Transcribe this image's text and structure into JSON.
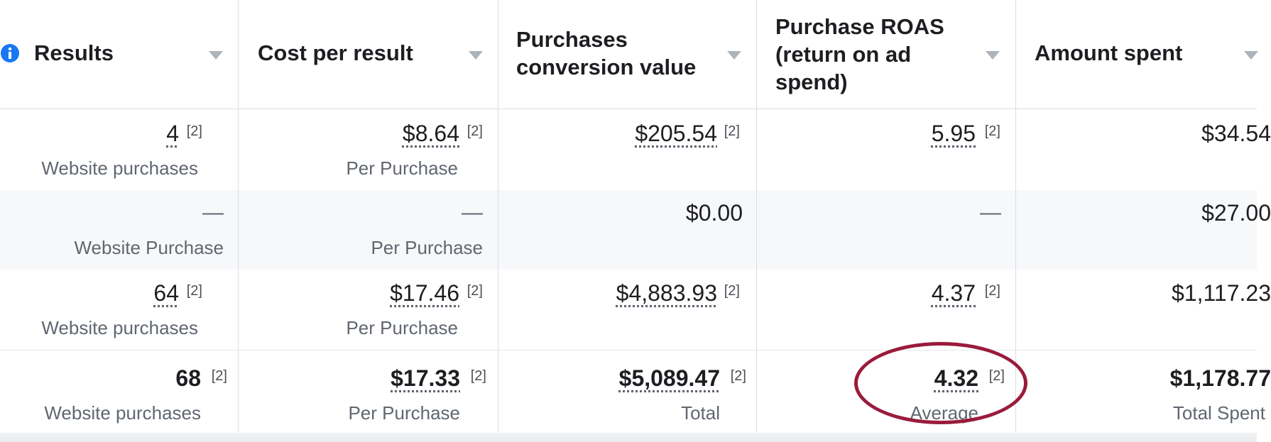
{
  "columns": [
    {
      "label": "Results"
    },
    {
      "label": "Cost per result"
    },
    {
      "label": "Purchases conversion value"
    },
    {
      "label": "Purchase ROAS (return on ad spend)"
    },
    {
      "label": "Amount spent"
    }
  ],
  "footnote": "[2]",
  "rows": [
    {
      "results": "4",
      "results_sub": "Website purchases",
      "cost": "$8.64",
      "cost_sub": "Per Purchase",
      "conv": "$205.54",
      "roas": "5.95",
      "spent": "$34.54"
    },
    {
      "results": "—",
      "results_sub": "Website Purchase",
      "cost": "—",
      "cost_sub": "Per Purchase",
      "conv": "$0.00",
      "roas": "—",
      "spent": "$27.00"
    },
    {
      "results": "64",
      "results_sub": "Website purchases",
      "cost": "$17.46",
      "cost_sub": "Per Purchase",
      "conv": "$4,883.93",
      "roas": "4.37",
      "spent": "$1,117.23"
    }
  ],
  "total": {
    "results": "68",
    "results_sub": "Website purchases",
    "cost": "$17.33",
    "cost_sub": "Per Purchase",
    "conv": "$5,089.47",
    "conv_sub": "Total",
    "roas": "4.32",
    "roas_sub": "Average",
    "spent": "$1,178.77",
    "spent_sub": "Total Spent"
  },
  "colors": {
    "highlight_circle": "#9a1b3c",
    "info_icon": "#1877f2"
  }
}
